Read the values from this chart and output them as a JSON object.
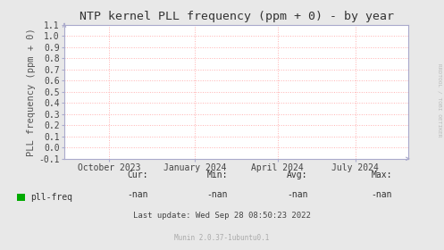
{
  "title": "NTP kernel PLL frequency (ppm + 0) - by year",
  "ylabel": "PLL frequency (ppm + 0)",
  "ylim": [
    -0.1,
    1.1
  ],
  "yticks": [
    -0.1,
    0.0,
    0.1,
    0.2,
    0.3,
    0.4,
    0.5,
    0.6,
    0.7,
    0.8,
    0.9,
    1.0,
    1.1
  ],
  "ytick_labels": [
    "-0.1",
    "0.0",
    "0.1",
    "0.2",
    "0.3",
    "0.4",
    "0.5",
    "0.6",
    "0.7",
    "0.8",
    "0.9",
    "1.0",
    "1.1"
  ],
  "xtick_labels": [
    "October 2023",
    "January 2024",
    "April 2024",
    "July 2024"
  ],
  "xtick_positions": [
    0.13,
    0.38,
    0.62,
    0.845
  ],
  "background_color": "#e8e8e8",
  "plot_bg_color": "#ffffff",
  "grid_color": "#ffb0b0",
  "axis_color": "#aaaacc",
  "title_color": "#333333",
  "title_fontsize": 9.5,
  "axis_label_color": "#555555",
  "axis_label_fontsize": 7.5,
  "tick_label_color": "#444444",
  "tick_label_fontsize": 7,
  "legend_label": "pll-freq",
  "legend_color": "#00aa00",
  "cur_label": "Cur:",
  "cur_value": "-nan",
  "min_label": "Min:",
  "min_value": "-nan",
  "avg_label": "Avg:",
  "avg_value": "-nan",
  "max_label": "Max:",
  "max_value": "-nan",
  "last_update": "Last update: Wed Sep 28 08:50:23 2022",
  "munin_text": "Munin 2.0.37-1ubuntu0.1",
  "watermark": "RRDTOOL / TOBI OETIKER"
}
